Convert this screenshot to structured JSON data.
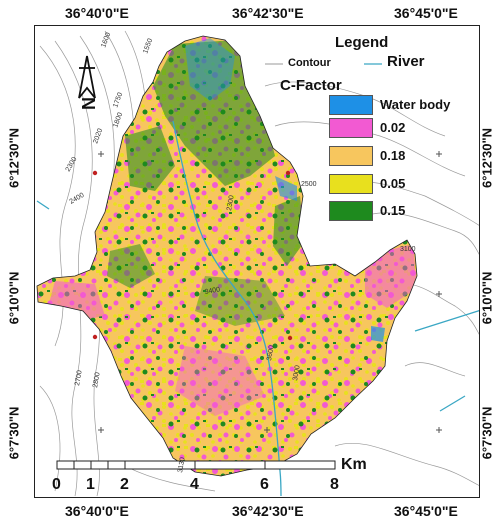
{
  "map": {
    "x_ticks_top": [
      "36°40'0\"E",
      "36°42'30\"E",
      "36°45'0\"E"
    ],
    "x_ticks_bottom": [
      "36°40'0\"E",
      "36°42'30\"E",
      "36°45'0\"E"
    ],
    "y_ticks_left": [
      "6°12'30\"N",
      "6°10'0\"N",
      "6°7'30\"N"
    ],
    "y_ticks_right": [
      "6°12'30\"N",
      "6°10'0\"N",
      "6°7'30\"N"
    ]
  },
  "legend": {
    "title": "Legend",
    "contour_label": "Contour",
    "river_label": "River",
    "cfactor_title": "C-Factor",
    "classes": [
      {
        "label": "Water body",
        "color": "#1e90e6"
      },
      {
        "label": "0.02",
        "color": "#f25ad2"
      },
      {
        "label": "0.18",
        "color": "#f7c65e"
      },
      {
        "label": "0.05",
        "color": "#e8e01e"
      },
      {
        "label": "0.15",
        "color": "#1e8a1e"
      }
    ]
  },
  "contour_labels": [
    "1600",
    "1550",
    "1750",
    "1800",
    "2020",
    "2300",
    "2400",
    "1900",
    "2500",
    "2300",
    "3100",
    "3400",
    "2700",
    "2800",
    "3600",
    "3130",
    "3000"
  ],
  "scale_bar": {
    "unit": "Km",
    "labels": [
      "0",
      "1",
      "2",
      "4",
      "6",
      "8"
    ]
  },
  "colors": {
    "contour": "#9a9a9a",
    "river": "#3aa7c4",
    "frame": "#222222"
  },
  "icons": [
    "north-arrow-icon"
  ]
}
